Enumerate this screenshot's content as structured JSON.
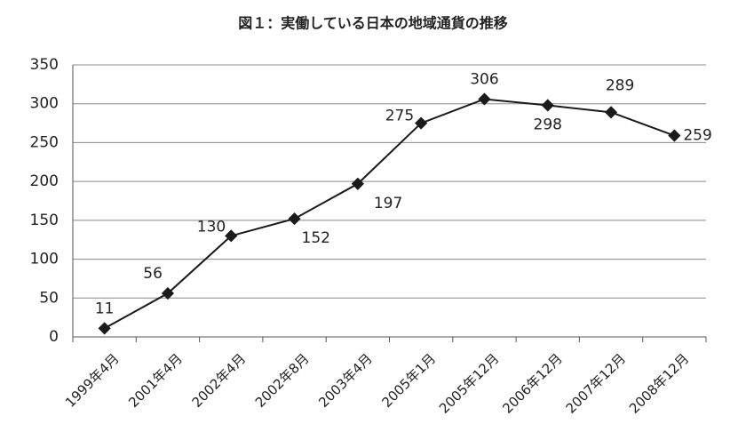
{
  "chart_data": {
    "type": "line",
    "title": "図１：実働している日本の地域通貨の推移",
    "categories": [
      "1999年4月",
      "2001年4月",
      "2002年4月",
      "2002年8月",
      "2003年4月",
      "2005年1月",
      "2005年12月",
      "2006年12月",
      "2007年12月",
      "2008年12月"
    ],
    "values": [
      11,
      56,
      130,
      152,
      197,
      275,
      306,
      298,
      289,
      259
    ],
    "color": "#1a1a1a",
    "ylim": [
      0,
      350
    ],
    "yticks": [
      0,
      50,
      100,
      150,
      200,
      250,
      300,
      350
    ],
    "grid": true
  }
}
